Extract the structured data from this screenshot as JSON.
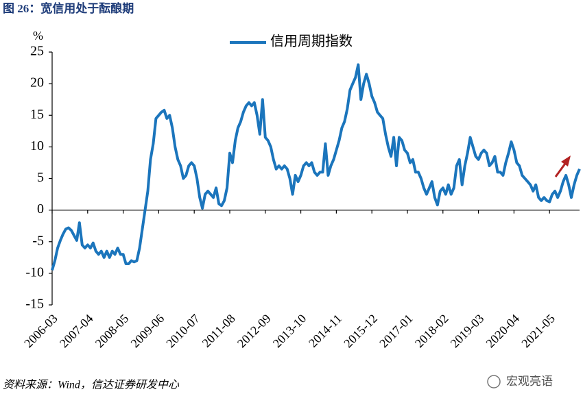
{
  "chart_data": {
    "type": "line",
    "title": "图 26：宽信用处于酝酿期",
    "y_unit": "%",
    "source": "资料来源：Wind，信达证券研发中心",
    "watermark": "宏观亮语",
    "x": [
      "2006-03",
      "2006-04",
      "2006-05",
      "2006-06",
      "2006-07",
      "2006-08",
      "2006-09",
      "2006-10",
      "2006-11",
      "2006-12",
      "2007-01",
      "2007-02",
      "2007-03",
      "2007-04",
      "2007-05",
      "2007-06",
      "2007-07",
      "2007-08",
      "2007-09",
      "2007-10",
      "2007-11",
      "2007-12",
      "2008-01",
      "2008-02",
      "2008-03",
      "2008-04",
      "2008-05",
      "2008-06",
      "2008-07",
      "2008-08",
      "2008-09",
      "2008-10",
      "2008-11",
      "2008-12",
      "2009-01",
      "2009-02",
      "2009-03",
      "2009-04",
      "2009-05",
      "2009-06",
      "2009-07",
      "2009-08",
      "2009-09",
      "2009-10",
      "2009-11",
      "2009-12",
      "2010-01",
      "2010-02",
      "2010-03",
      "2010-04",
      "2010-05",
      "2010-06",
      "2010-07",
      "2010-08",
      "2010-09",
      "2010-10",
      "2010-11",
      "2010-12",
      "2011-01",
      "2011-02",
      "2011-03",
      "2011-04",
      "2011-05",
      "2011-06",
      "2011-07",
      "2011-08",
      "2011-09",
      "2011-10",
      "2011-11",
      "2011-12",
      "2012-01",
      "2012-02",
      "2012-03",
      "2012-04",
      "2012-05",
      "2012-06",
      "2012-07",
      "2012-08",
      "2012-09",
      "2012-10",
      "2012-11",
      "2012-12",
      "2013-01",
      "2013-02",
      "2013-03",
      "2013-04",
      "2013-05",
      "2013-06",
      "2013-07",
      "2013-08",
      "2013-09",
      "2013-10",
      "2013-11",
      "2013-12",
      "2014-01",
      "2014-02",
      "2014-03",
      "2014-04",
      "2014-05",
      "2014-06",
      "2014-07",
      "2014-08",
      "2014-09",
      "2014-10",
      "2014-11",
      "2014-12",
      "2015-01",
      "2015-02",
      "2015-03",
      "2015-04",
      "2015-05",
      "2015-06",
      "2015-07",
      "2015-08",
      "2015-09",
      "2015-10",
      "2015-11",
      "2015-12",
      "2016-01",
      "2016-02",
      "2016-03",
      "2016-04",
      "2016-05",
      "2016-06",
      "2016-07",
      "2016-08",
      "2016-09",
      "2016-10",
      "2016-11",
      "2016-12",
      "2017-01",
      "2017-02",
      "2017-03",
      "2017-04",
      "2017-05",
      "2017-06",
      "2017-07",
      "2017-08",
      "2017-09",
      "2017-10",
      "2017-11",
      "2017-12",
      "2018-01",
      "2018-02",
      "2018-03",
      "2018-04",
      "2018-05",
      "2018-06",
      "2018-07",
      "2018-08",
      "2018-09",
      "2018-10",
      "2018-11",
      "2018-12",
      "2019-01",
      "2019-02",
      "2019-03",
      "2019-04",
      "2019-05",
      "2019-06",
      "2019-07",
      "2019-08",
      "2019-09",
      "2019-10",
      "2019-11",
      "2019-12",
      "2020-01",
      "2020-02",
      "2020-03",
      "2020-04",
      "2020-05",
      "2020-06",
      "2020-07",
      "2020-08",
      "2020-09",
      "2020-10",
      "2020-11",
      "2020-12",
      "2021-01",
      "2021-02",
      "2021-03",
      "2021-04",
      "2021-05",
      "2021-06",
      "2021-07",
      "2021-08",
      "2021-09",
      "2021-10",
      "2021-11",
      "2021-12",
      "2022-01",
      "2022-02",
      "2022-03",
      "2022-04"
    ],
    "xticks": [
      "2006-03",
      "2007-04",
      "2008-05",
      "2009-06",
      "2010-07",
      "2011-08",
      "2012-09",
      "2013-10",
      "2014-11",
      "2015-12",
      "2017-01",
      "2018-02",
      "2019-03",
      "2020-04",
      "2021-05"
    ],
    "series": [
      {
        "name": "信用周期指数",
        "color": "#1b75bc",
        "values": [
          -9.5,
          -8,
          -6,
          -4.8,
          -3.8,
          -3,
          -2.8,
          -3.2,
          -4,
          -4.8,
          -2,
          -5.5,
          -6,
          -5.5,
          -6,
          -5.2,
          -6.5,
          -7,
          -6.5,
          -7.5,
          -6.5,
          -7.5,
          -6.5,
          -7,
          -6,
          -7,
          -7,
          -8.5,
          -8.5,
          -8,
          -8.2,
          -8,
          -6,
          -3,
          0,
          3,
          8,
          10.5,
          14.5,
          15,
          15.5,
          15.8,
          14.5,
          15,
          13,
          10,
          8,
          7,
          5,
          5.5,
          7,
          7.5,
          7,
          5,
          2,
          0.3,
          2.5,
          3,
          2.5,
          2,
          3.5,
          1,
          0.7,
          1.5,
          3.5,
          9,
          7.5,
          11,
          13,
          14,
          15.5,
          16.5,
          17,
          16.5,
          17,
          15,
          12,
          17.5,
          11.5,
          11,
          10,
          8,
          6.5,
          7,
          6.5,
          7,
          6.5,
          5,
          2.5,
          5.5,
          4.5,
          5.5,
          7,
          7.5,
          7,
          7.5,
          6,
          5.5,
          6,
          6,
          10.5,
          5.5,
          7,
          8,
          9.5,
          11,
          13,
          14,
          16,
          19,
          20,
          21,
          23,
          17.5,
          20,
          21.5,
          20,
          18,
          17,
          15.5,
          15,
          14.5,
          12,
          10,
          8.5,
          11.5,
          7,
          11.5,
          11,
          9.5,
          9,
          7.5,
          8,
          6,
          6,
          5,
          3.5,
          2.5,
          3.5,
          4.5,
          2,
          0.8,
          3,
          3.5,
          2.5,
          4,
          2.5,
          3.5,
          7,
          8,
          4,
          7,
          9,
          11.5,
          10,
          8.5,
          8,
          9,
          9.5,
          9,
          7,
          7.5,
          8.5,
          6,
          6,
          5.5,
          7.5,
          9,
          10.8,
          9.5,
          7.5,
          7,
          5.5,
          5,
          4.5,
          4,
          3,
          4,
          2,
          1.5,
          2,
          1.5,
          1.3,
          2.5,
          3,
          2,
          3,
          4.5,
          5.5,
          4,
          2,
          4,
          5.5,
          6.5
        ]
      }
    ],
    "ylim": [
      -15,
      25
    ],
    "yticks": [
      -15,
      -10,
      -5,
      0,
      5,
      10,
      15,
      20,
      25
    ],
    "legend": "top"
  }
}
